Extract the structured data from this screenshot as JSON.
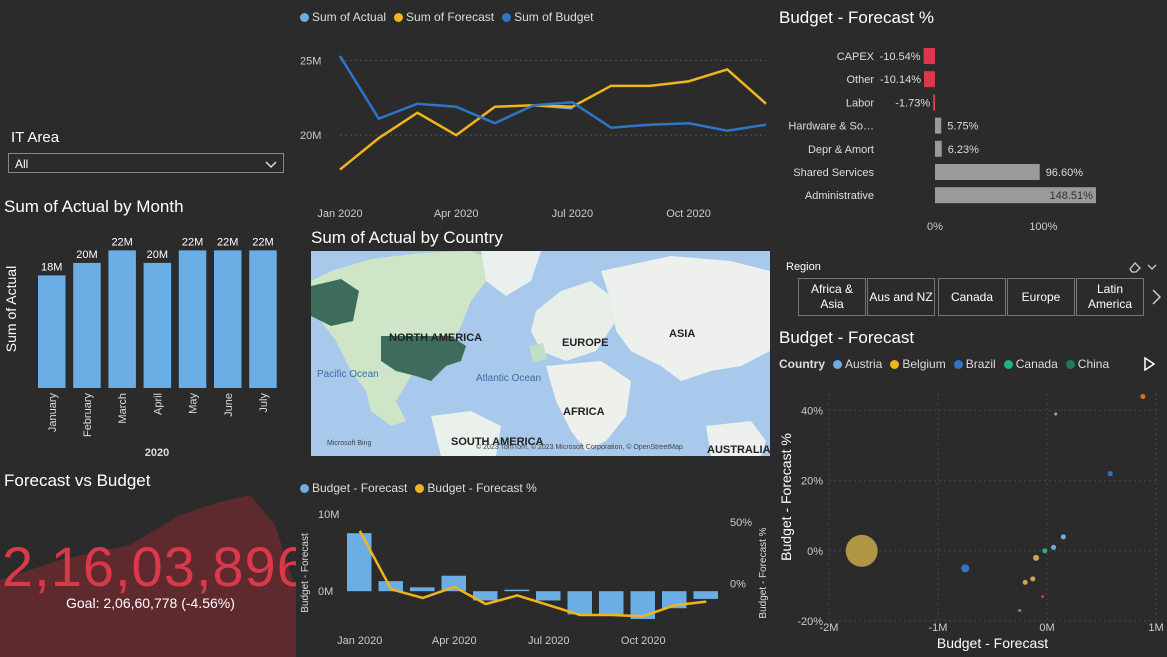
{
  "colors": {
    "actual": "#6baee5",
    "forecast": "#f3b41b",
    "budget": "#2f75c6",
    "neg": "#d9394b",
    "gray": "#9a9a9a",
    "bg": "#2b2b2b"
  },
  "it_area": {
    "label": "IT Area",
    "value": "All"
  },
  "line_chart": {
    "legend": [
      "Sum of Actual",
      "Sum of Forecast",
      "Sum of Budget"
    ],
    "chart_data": {
      "type": "line",
      "x": [
        "Jan 2020",
        "Feb 2020",
        "Mar 2020",
        "Apr 2020",
        "May 2020",
        "Jun 2020",
        "Jul 2020",
        "Aug 2020",
        "Sep 2020",
        "Oct 2020",
        "Nov 2020",
        "Dec 2020"
      ],
      "x_tick_labels": [
        "Jan 2020",
        "Apr 2020",
        "Jul 2020",
        "Oct 2020"
      ],
      "y_tick_labels": [
        "25M",
        "20M"
      ],
      "ylim": [
        17000000,
        26500000
      ],
      "series": [
        {
          "name": "Sum of Actual",
          "values": [
            null,
            null,
            null,
            null,
            null,
            22000000,
            21800000,
            null,
            null,
            null,
            null,
            null
          ]
        },
        {
          "name": "Sum of Forecast",
          "values": [
            17700000,
            19800000,
            21500000,
            20000000,
            21900000,
            22000000,
            21900000,
            23300000,
            23300000,
            23600000,
            24400000,
            22100000
          ]
        },
        {
          "name": "Sum of Budget",
          "values": [
            25300000,
            21100000,
            22100000,
            21900000,
            20800000,
            22000000,
            22200000,
            20500000,
            20700000,
            20800000,
            20300000,
            20700000
          ]
        }
      ]
    }
  },
  "budget_forecast_pct": {
    "title": "Budget - Forecast %",
    "chart_data": {
      "type": "bar",
      "categories": [
        "CAPEX",
        "Other",
        "Labor",
        "Hardware & So…",
        "Depr & Amort",
        "Shared Services",
        "Administrative"
      ],
      "values": [
        -10.54,
        -10.14,
        -1.73,
        5.75,
        6.23,
        96.6,
        148.51
      ],
      "labels": [
        "-10.54%",
        "-10.14%",
        "-1.73%",
        "5.75%",
        "6.23%",
        "96.60%",
        "148.51%"
      ],
      "x_tick_labels": [
        "0%",
        "100%"
      ],
      "xlim": [
        -15,
        155
      ]
    }
  },
  "actual_by_month": {
    "title": "Sum of Actual by Month",
    "chart_data": {
      "type": "bar",
      "categories": [
        "January",
        "February",
        "March",
        "April",
        "May",
        "June",
        "July"
      ],
      "values": [
        18000000,
        20000000,
        22000000,
        20000000,
        22000000,
        22000000,
        22000000
      ],
      "labels": [
        "18M",
        "20M",
        "22M",
        "20M",
        "22M",
        "22M",
        "22M"
      ],
      "ylabel": "Sum of Actual",
      "xlabel": "2020",
      "ylim": [
        0,
        23500000
      ]
    }
  },
  "map": {
    "title": "Sum of Actual by Country",
    "labels": [
      "NORTH AMERICA",
      "EUROPE",
      "ASIA",
      "AFRICA",
      "SOUTH AMERICA",
      "AUSTRALIA",
      "Pacific Ocean",
      "Atlantic Ocean"
    ],
    "attribution": "© 2023 TomTom, © 2023 Microsoft Corporation, © OpenStreetMap",
    "brand": "Microsoft Bing"
  },
  "region": {
    "label": "Region",
    "buttons": [
      "Africa & Asia",
      "Aus and NZ",
      "Canada",
      "Europe",
      "Latin America"
    ]
  },
  "kpi": {
    "title": "Forecast vs Budget",
    "value": "2,16,03,896",
    "goal": "Goal: 2,06,60,778 (-4.56%)"
  },
  "combo": {
    "legend": [
      "Budget - Forecast",
      "Budget - Forecast %"
    ],
    "chart_data": {
      "type": "bar",
      "x_tick_labels": [
        "Jan 2020",
        "Apr 2020",
        "Jul 2020",
        "Oct 2020"
      ],
      "y_left_ticks": [
        "10M",
        "0M"
      ],
      "y_right_ticks": [
        "50%",
        "0%"
      ],
      "y_left_label": "Budget - Forecast",
      "y_right_label": "Budget - Forecast %",
      "series": [
        {
          "name": "Budget - Forecast",
          "values": [
            7500000,
            1300000,
            500000,
            2000000,
            -1200000,
            200000,
            -1200000,
            -3000000,
            -3000000,
            -3600000,
            -2200000,
            -1000000
          ]
        },
        {
          "name": "Budget - Forecast %",
          "values": [
            43,
            -5,
            -12,
            -3,
            -17,
            -10,
            -18,
            -26,
            -26,
            -27,
            -18,
            -15
          ]
        }
      ],
      "ylim_left": [
        -4500000,
        10500000
      ],
      "ylim_right": [
        -35,
        60
      ]
    }
  },
  "scatter": {
    "title": "Budget - Forecast",
    "legend_title": "Country",
    "legend": [
      {
        "name": "Austria",
        "color": "#6baee5"
      },
      {
        "name": "Belgium",
        "color": "#f3b41b"
      },
      {
        "name": "Brazil",
        "color": "#2f75c6"
      },
      {
        "name": "Canada",
        "color": "#26b08a"
      },
      {
        "name": "China",
        "color": "#1f7a5c"
      }
    ],
    "chart_data": {
      "type": "scatter",
      "xlabel": "Budget - Forecast",
      "ylabel": "Budget - Forecast %",
      "x_tick_labels": [
        "-2M",
        "-1M",
        "0M",
        "1M"
      ],
      "y_tick_labels": [
        "40%",
        "20%",
        "0%",
        "-20%"
      ],
      "xlim": [
        -2000000,
        1000000
      ],
      "ylim": [
        -20,
        45
      ],
      "points": [
        {
          "x": -1700000,
          "y": 0,
          "r": 16,
          "color": "#c8a84a"
        },
        {
          "x": -750000,
          "y": -5,
          "r": 4,
          "color": "#2f75c6"
        },
        {
          "x": -100000,
          "y": -2,
          "r": 3,
          "color": "#c8a84a"
        },
        {
          "x": -20000,
          "y": 0,
          "r": 2.5,
          "color": "#26b08a"
        },
        {
          "x": 60000,
          "y": 1,
          "r": 2.5,
          "color": "#6baee5"
        },
        {
          "x": 150000,
          "y": 4,
          "r": 2.5,
          "color": "#6baee5"
        },
        {
          "x": -200000,
          "y": -9,
          "r": 2.5,
          "color": "#c8a84a"
        },
        {
          "x": -130000,
          "y": -8,
          "r": 2.5,
          "color": "#c8a84a"
        },
        {
          "x": -40000,
          "y": -13,
          "r": 1.5,
          "color": "#d9394b"
        },
        {
          "x": -250000,
          "y": -17,
          "r": 1.5,
          "color": "#888888"
        },
        {
          "x": 80000,
          "y": 39,
          "r": 1.5,
          "color": "#6baee5"
        },
        {
          "x": 580000,
          "y": 22,
          "r": 2.5,
          "color": "#2f75c6"
        },
        {
          "x": 880000,
          "y": 44,
          "r": 2.5,
          "color": "#e0692e"
        }
      ]
    }
  }
}
